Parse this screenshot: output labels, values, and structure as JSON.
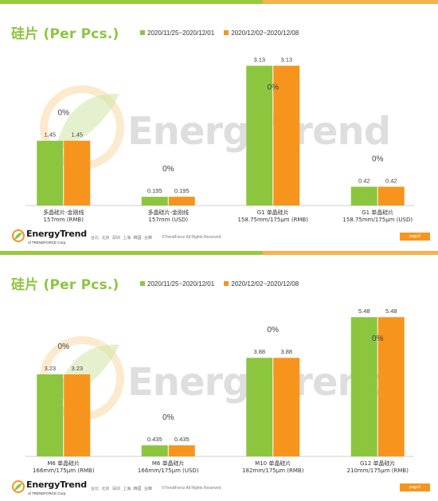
{
  "theme": {
    "green": "#8cc63f",
    "orange": "#f7941d",
    "title_color": "#8cc63f",
    "bar_green": "#8cc63f",
    "bar_orange": "#f7941d"
  },
  "footer": {
    "logo_text": "EnergyTrend",
    "logo_sub": "of TRENDFORCE Corp.",
    "cities": "台北 北京 深圳 上海 韓國 台韓",
    "copyright": "©TrendForce All Rights Reserved",
    "page_label": "page3"
  },
  "watermark": {
    "text": "EnergyTrend"
  },
  "chart_data": [
    {
      "type": "bar",
      "title": "硅片 (Per Pcs.)",
      "categories": [
        "多晶硅片-金刚线\n157mm (RMB)",
        "多晶硅片-金刚线\n157mm (USD)",
        "G1 单晶硅片\n158.75mm/175μm (RMB)",
        "G1 单晶硅片\n158.75mm/175μm (USD)"
      ],
      "series": [
        {
          "name": "2020/11/25~2020/12/01",
          "values": [
            1.45,
            0.195,
            3.13,
            0.42
          ],
          "color": "#8cc63f"
        },
        {
          "name": "2020/12/02~2020/12/08",
          "values": [
            1.45,
            0.195,
            3.13,
            0.42
          ],
          "color": "#f7941d"
        }
      ],
      "value_labels": [
        [
          "1.45",
          "0.195",
          "3.13",
          "0.42"
        ],
        [
          "1.45",
          "0.195",
          "3.13",
          "0.42"
        ]
      ],
      "changes": [
        "0%",
        "0%",
        "0%",
        "0%"
      ],
      "ylim": [
        0,
        3.3
      ],
      "legend": "top",
      "grid": false
    },
    {
      "type": "bar",
      "title": "硅片 (Per Pcs.)",
      "categories": [
        "M6 单晶硅片\n166mm/175μm (RMB)",
        "M6 单晶硅片\n166mm/175μm (USD)",
        "M10 单晶硅片\n182mm/175μm (RMB)",
        "G12 单晶硅片\n210mm/175μm (RMB)"
      ],
      "series": [
        {
          "name": "2020/11/25~2020/12/01",
          "values": [
            3.23,
            0.435,
            3.88,
            5.48
          ],
          "color": "#8cc63f"
        },
        {
          "name": "2020/12/02~2020/12/08",
          "values": [
            3.23,
            0.435,
            3.88,
            5.48
          ],
          "color": "#f7941d"
        }
      ],
      "value_labels": [
        [
          "3.23",
          "0.435",
          "3.88",
          "5.48"
        ],
        [
          "3.23",
          "0.435",
          "3.88",
          "5.48"
        ]
      ],
      "changes": [
        "0%",
        "0%",
        "0%",
        "0%"
      ],
      "ylim": [
        0,
        5.8
      ],
      "legend": "top",
      "grid": false
    }
  ]
}
